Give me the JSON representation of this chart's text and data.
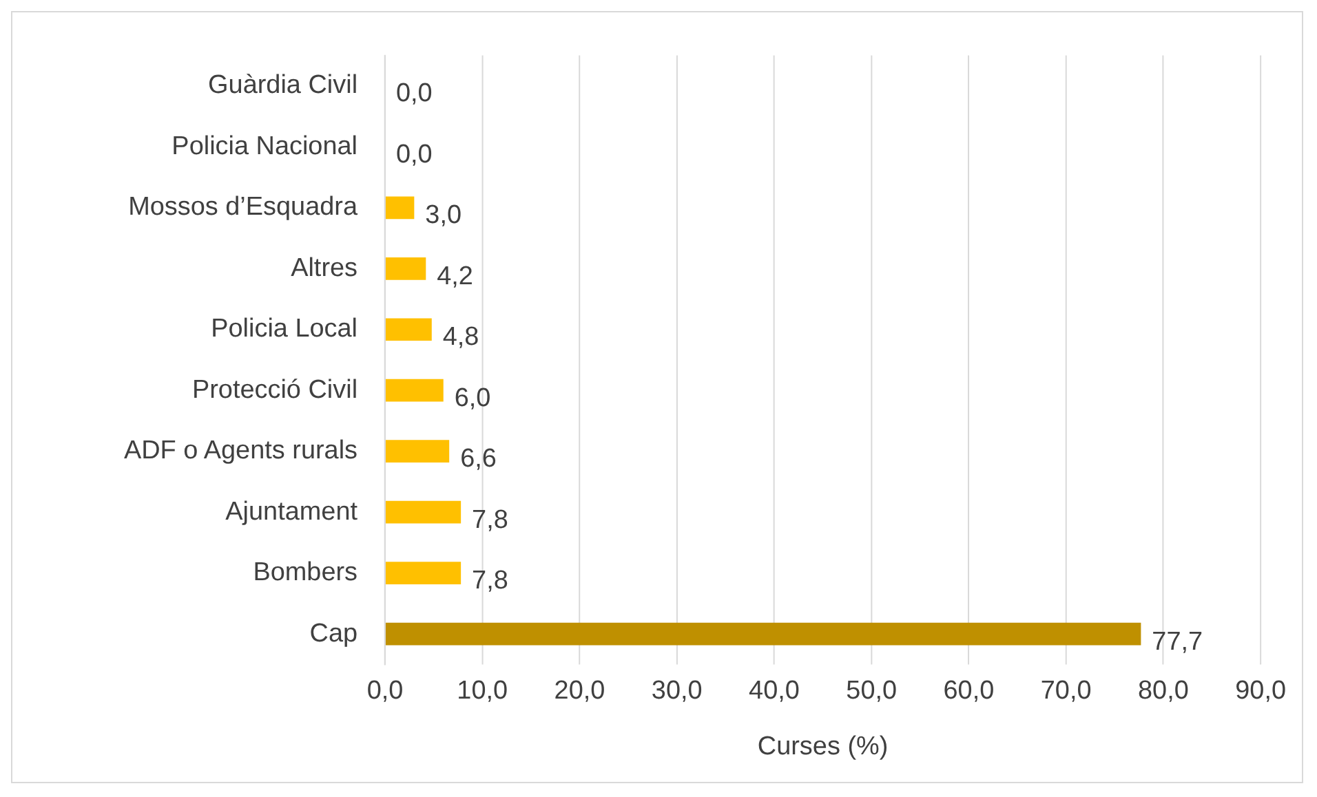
{
  "chart_data": {
    "type": "bar",
    "orientation": "horizontal",
    "xlabel": "Curses (%)",
    "categories": [
      "Guàrdia Civil",
      "Policia Nacional",
      "Mossos d’Esquadra",
      "Altres",
      "Policia Local",
      "Protecció Civil",
      "ADF o Agents rurals",
      "Ajuntament",
      "Bombers",
      "Cap"
    ],
    "values": [
      0.0,
      0.0,
      3.0,
      4.2,
      4.8,
      6.0,
      6.6,
      7.8,
      7.8,
      77.7
    ],
    "colors": [
      "#ffc000",
      "#ffc000",
      "#ffc000",
      "#ffc000",
      "#ffc000",
      "#ffc000",
      "#ffc000",
      "#ffc000",
      "#ffc000",
      "#bf9000"
    ],
    "value_labels": [
      "0,0",
      "0,0",
      "3,0",
      "4,2",
      "4,8",
      "6,0",
      "6,6",
      "7,8",
      "7,8",
      "77,7"
    ],
    "xlim": [
      0,
      90
    ],
    "xticks": [
      {
        "value": 0,
        "label": "0,0"
      },
      {
        "value": 10,
        "label": "10,0"
      },
      {
        "value": 20,
        "label": "20,0"
      },
      {
        "value": 30,
        "label": "30,0"
      },
      {
        "value": 40,
        "label": "40,0"
      },
      {
        "value": 50,
        "label": "50,0"
      },
      {
        "value": 60,
        "label": "60,0"
      },
      {
        "value": 70,
        "label": "70,0"
      },
      {
        "value": 80,
        "label": "80,0"
      },
      {
        "value": 90,
        "label": "90,0"
      }
    ],
    "grid": "x",
    "legend": false
  }
}
